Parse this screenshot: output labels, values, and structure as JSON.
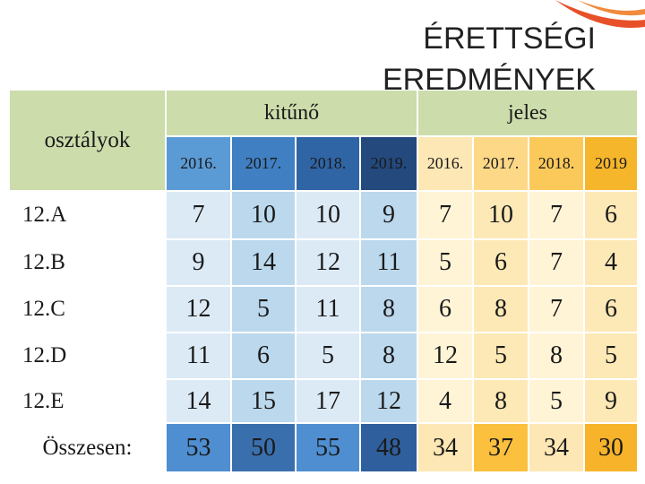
{
  "title": "ÉRETTSÉGI EREDMÉNYEK",
  "table": {
    "row_header": "osztályok",
    "groups": [
      "kitűnő",
      "jeles"
    ],
    "years": [
      "2016.",
      "2017.",
      "2018.",
      "2019.",
      "2016.",
      "2017.",
      "2018.",
      "2019"
    ],
    "rows": [
      [
        "12.A",
        7,
        10,
        10,
        9,
        7,
        10,
        7,
        6
      ],
      [
        "12.B",
        9,
        14,
        12,
        11,
        5,
        6,
        7,
        4
      ],
      [
        "12.C",
        12,
        5,
        11,
        8,
        6,
        8,
        7,
        6
      ],
      [
        "12.D",
        11,
        6,
        5,
        8,
        12,
        5,
        8,
        5
      ],
      [
        "12.E",
        14,
        15,
        17,
        12,
        4,
        8,
        5,
        9
      ],
      [
        "Összesen:",
        53,
        50,
        55,
        48,
        34,
        37,
        34,
        30
      ]
    ]
  }
}
